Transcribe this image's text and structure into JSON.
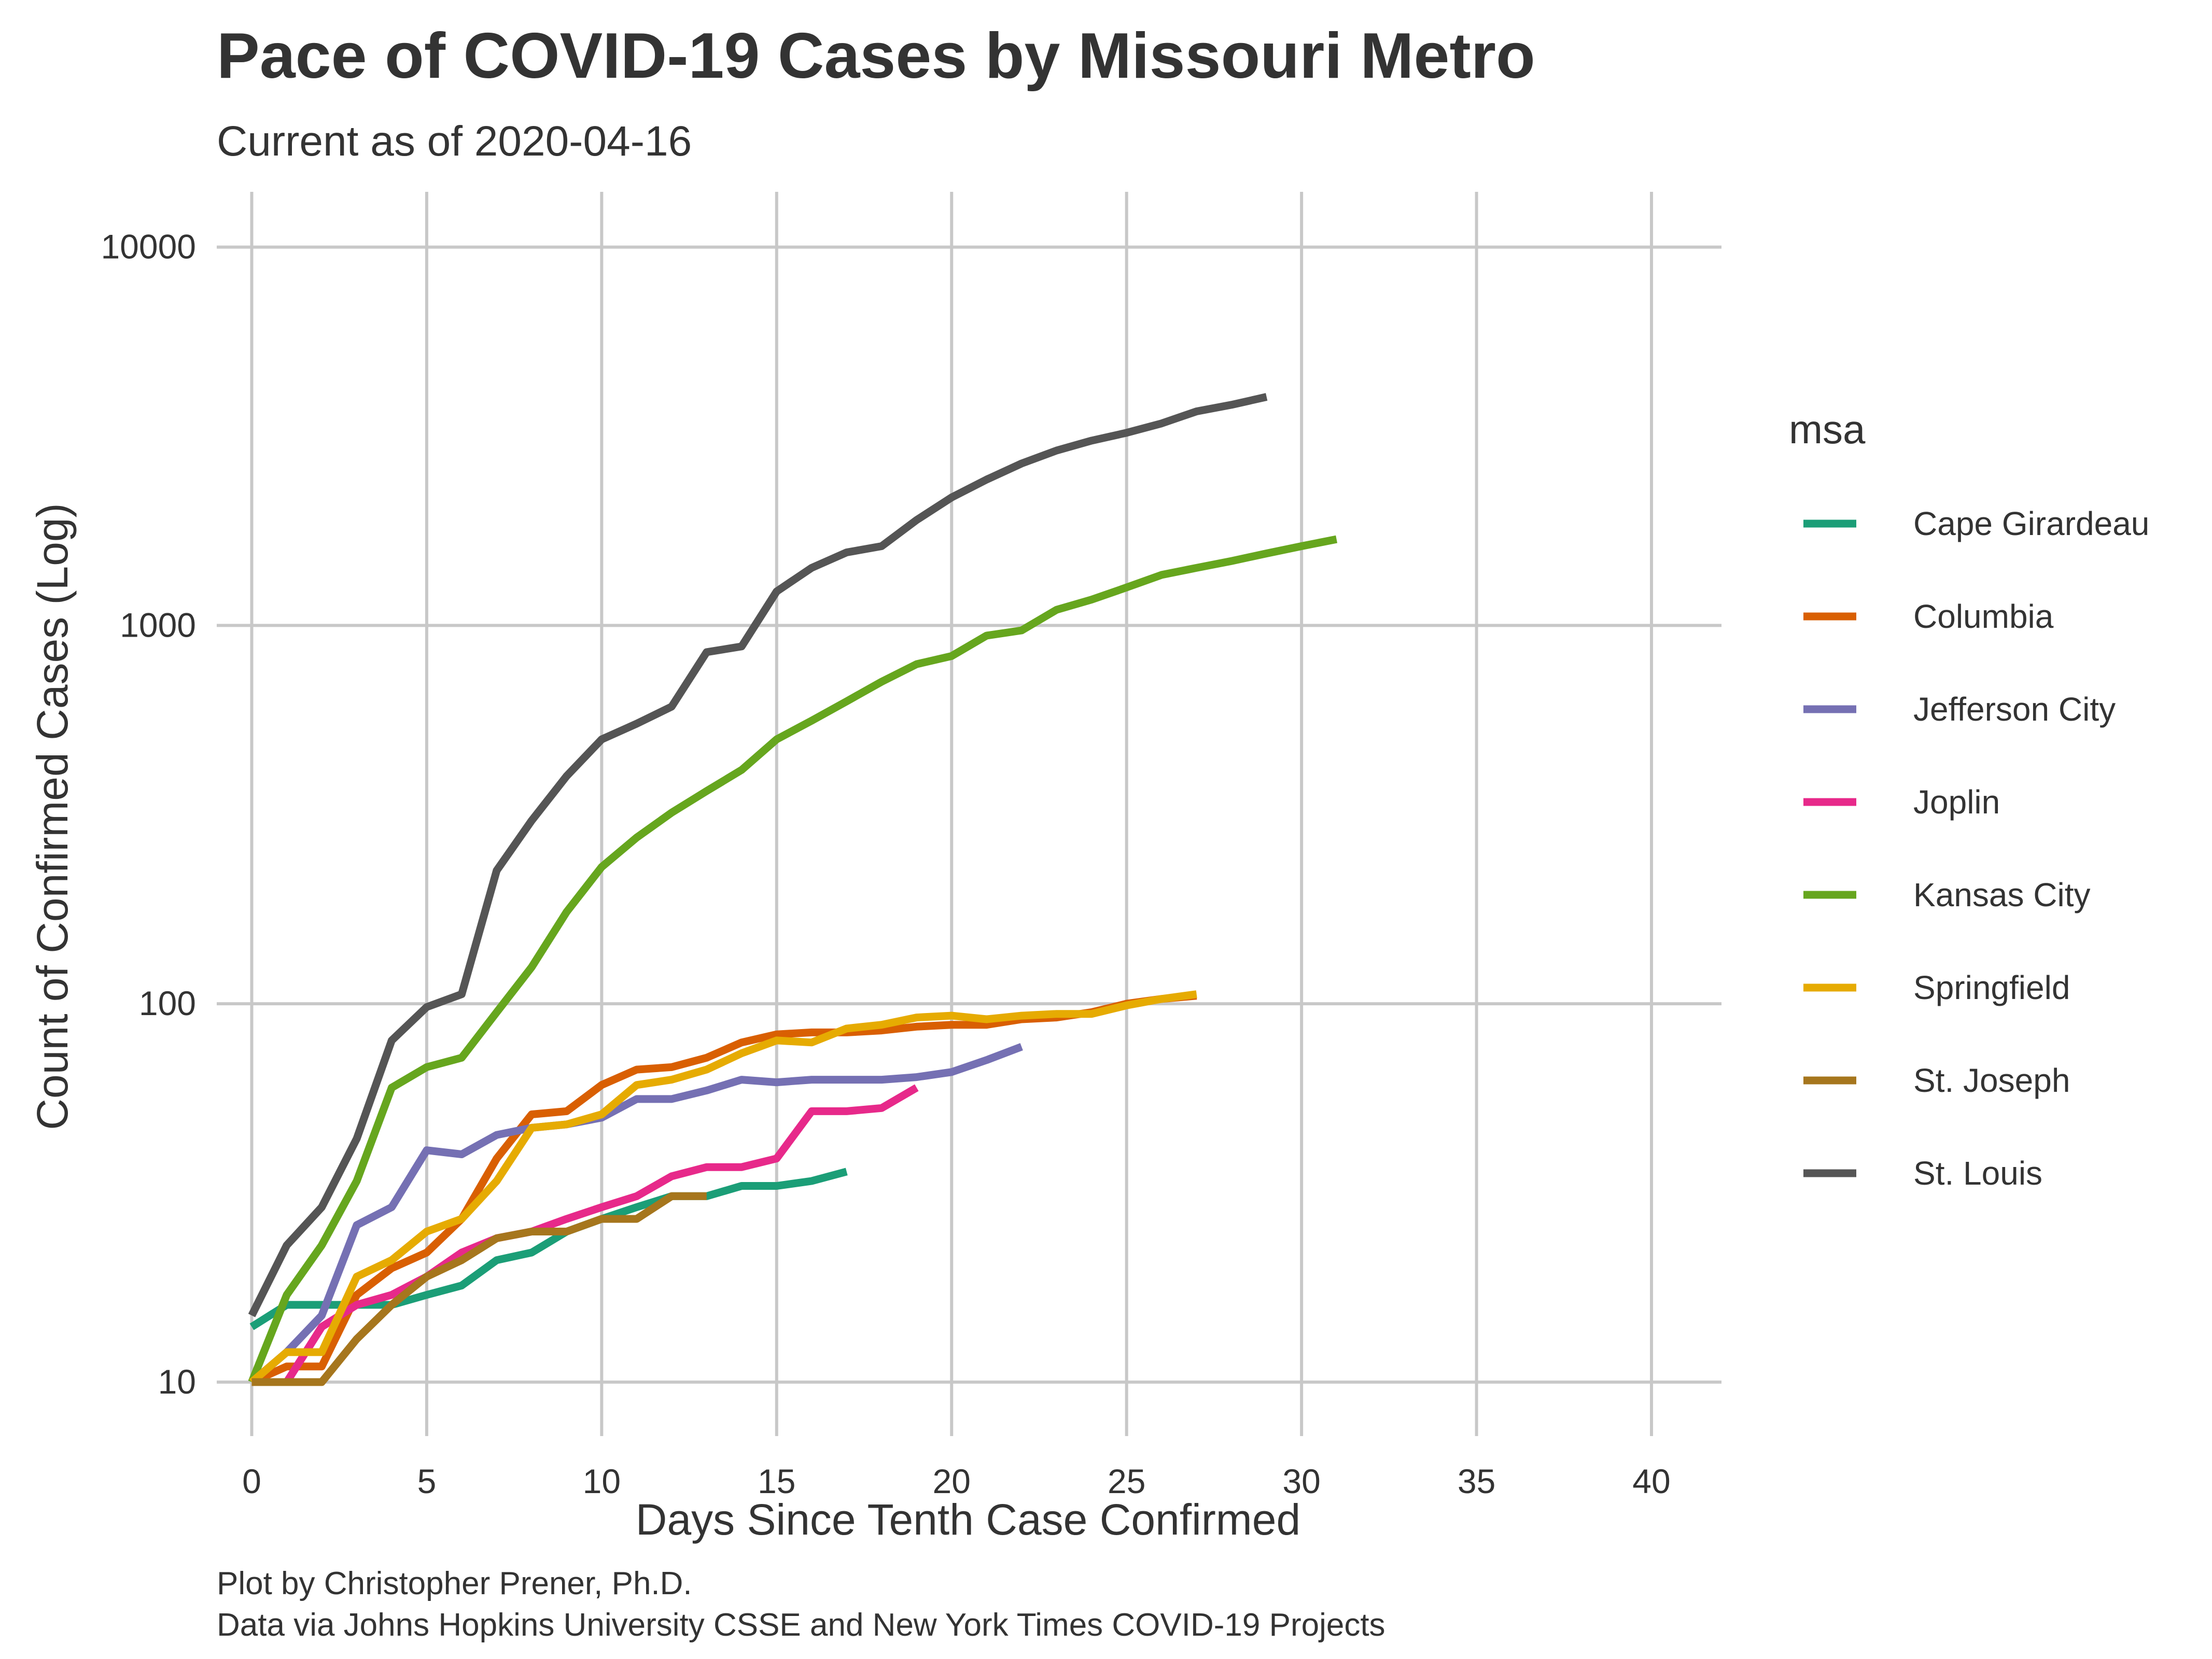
{
  "chart_data": {
    "type": "line",
    "title": "Pace of COVID-19 Cases by Missouri Metro",
    "subtitle": "Current as of 2020-04-16",
    "xlabel": "Days Since Tenth Case Confirmed",
    "ylabel": "Count of Confirmed Cases (Log)",
    "caption_lines": [
      "Plot by Christopher Prener, Ph.D.",
      "Data via Johns Hopkins University CSSE and New York Times COVID-19 Projects"
    ],
    "xlim": [
      -1,
      42
    ],
    "ylim": [
      7.2,
      14000
    ],
    "y_scale": "log",
    "x_ticks": [
      0,
      5,
      10,
      15,
      20,
      25,
      30,
      35,
      40
    ],
    "x_tick_labels": [
      "0",
      "5",
      "10",
      "15",
      "20",
      "25",
      "30",
      "35",
      "40"
    ],
    "y_ticks": [
      10,
      100,
      1000,
      10000
    ],
    "y_tick_labels": [
      "10",
      "100",
      "1000",
      "10000"
    ],
    "grid": true,
    "legend": {
      "title": "msa",
      "position": "right"
    },
    "series": [
      {
        "name": "Cape Girardeau",
        "color": "#1b9e77",
        "x": [
          0,
          1,
          2,
          3,
          4,
          5,
          6,
          7,
          8,
          9,
          10,
          11,
          12,
          13,
          14,
          15,
          16,
          17
        ],
        "y": [
          14,
          16,
          16,
          16,
          16,
          17,
          18,
          21,
          22,
          25,
          27,
          29,
          31,
          31,
          33,
          33,
          34,
          36
        ]
      },
      {
        "name": "Columbia",
        "color": "#d95f02",
        "x": [
          0,
          1,
          2,
          3,
          4,
          5,
          6,
          7,
          8,
          9,
          10,
          11,
          12,
          13,
          14,
          15,
          16,
          17,
          18,
          19,
          20,
          21,
          22,
          23,
          24,
          25,
          26,
          27
        ],
        "y": [
          10,
          11,
          11,
          17,
          20,
          22,
          27,
          39,
          51,
          52,
          61,
          67,
          68,
          72,
          79,
          83,
          84,
          84,
          85,
          87,
          88,
          88,
          91,
          92,
          95,
          100,
          103,
          105
        ]
      },
      {
        "name": "Jefferson City",
        "color": "#7570b3",
        "x": [
          0,
          1,
          2,
          3,
          4,
          5,
          6,
          7,
          8,
          9,
          10,
          11,
          12,
          13,
          14,
          15,
          16,
          17,
          18,
          19,
          20,
          21,
          22
        ],
        "y": [
          10,
          12,
          15,
          26,
          29,
          41,
          40,
          45,
          47,
          48,
          50,
          56,
          56,
          59,
          63,
          62,
          63,
          63,
          63,
          64,
          66,
          71,
          77
        ]
      },
      {
        "name": "Joplin",
        "color": "#e7298a",
        "x": [
          1,
          2,
          3,
          4,
          5,
          6,
          7,
          8,
          9,
          10,
          11,
          12,
          13,
          14,
          15,
          16,
          17,
          18,
          19
        ],
        "y": [
          10,
          14,
          16,
          17,
          19,
          22,
          24,
          25,
          27,
          29,
          31,
          35,
          37,
          37,
          39,
          52,
          52,
          53,
          60
        ]
      },
      {
        "name": "Kansas City",
        "color": "#66a61e",
        "x": [
          0,
          1,
          2,
          3,
          4,
          5,
          6,
          7,
          8,
          9,
          10,
          11,
          12,
          13,
          14,
          15,
          16,
          17,
          18,
          19,
          20,
          21,
          22,
          23,
          24,
          25,
          26,
          27,
          28,
          29,
          30,
          31
        ],
        "y": [
          10,
          17,
          23,
          34,
          60,
          68,
          72,
          95,
          125,
          175,
          230,
          275,
          320,
          365,
          415,
          500,
          560,
          630,
          710,
          790,
          830,
          940,
          970,
          1100,
          1170,
          1260,
          1360,
          1420,
          1480,
          1550,
          1620,
          1690
        ]
      },
      {
        "name": "Springfield",
        "color": "#e6ab02",
        "x": [
          0,
          1,
          2,
          3,
          4,
          5,
          6,
          7,
          8,
          9,
          10,
          11,
          12,
          13,
          14,
          15,
          16,
          17,
          18,
          19,
          20,
          21,
          22,
          23,
          24,
          25,
          26,
          27
        ],
        "y": [
          10,
          12,
          12,
          19,
          21,
          25,
          27,
          34,
          47,
          48,
          51,
          61,
          63,
          67,
          74,
          80,
          79,
          86,
          88,
          92,
          93,
          91,
          93,
          94,
          94,
          99,
          103,
          106
        ]
      },
      {
        "name": "St. Joseph",
        "color": "#a6761d",
        "x": [
          0,
          1,
          2,
          3,
          4,
          5,
          6,
          7,
          8,
          9,
          10,
          11,
          12,
          13
        ],
        "y": [
          10,
          10,
          10,
          13,
          16,
          19,
          21,
          24,
          25,
          25,
          27,
          27,
          31,
          31
        ]
      },
      {
        "name": "St. Louis",
        "color": "#555555",
        "x": [
          0,
          1,
          2,
          3,
          4,
          5,
          6,
          7,
          8,
          9,
          10,
          11,
          12,
          13,
          14,
          15,
          16,
          17,
          18,
          19,
          20,
          21,
          22,
          23,
          24,
          25,
          26,
          27,
          28,
          29
        ],
        "y": [
          15,
          23,
          29,
          44,
          80,
          98,
          106,
          225,
          305,
          400,
          500,
          550,
          610,
          850,
          880,
          1230,
          1420,
          1560,
          1620,
          1900,
          2180,
          2430,
          2680,
          2900,
          3080,
          3230,
          3420,
          3680,
          3830,
          4020
        ]
      }
    ]
  }
}
